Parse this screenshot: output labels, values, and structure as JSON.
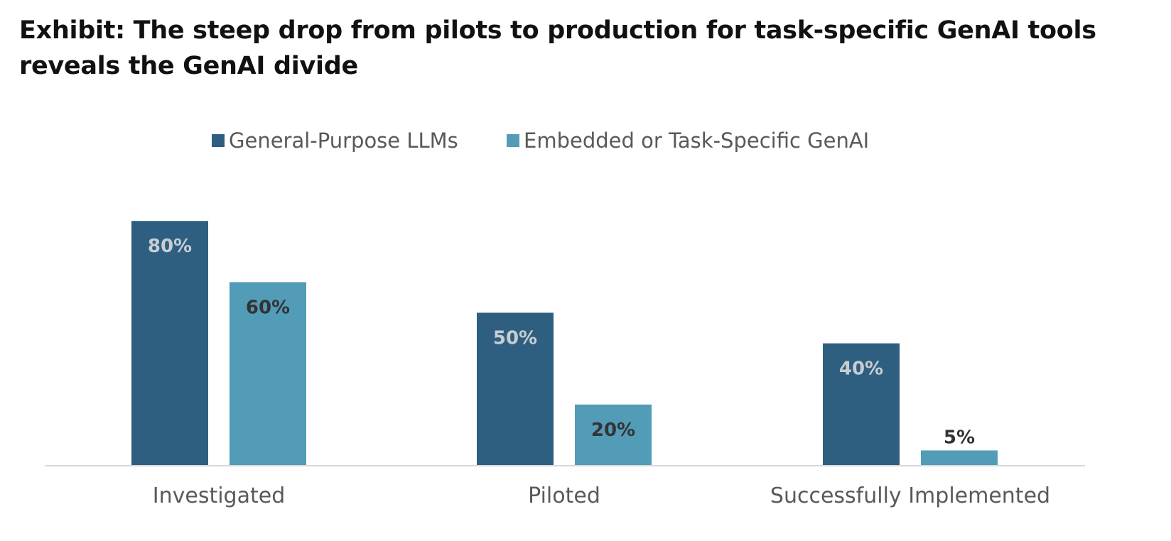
{
  "title": "Exhibit: The steep drop from pilots to production for task-specific GenAI tools reveals the GenAI divide",
  "chart_data": {
    "type": "bar",
    "categories": [
      "Investigated",
      "Piloted",
      "Successfully Implemented"
    ],
    "series": [
      {
        "name": "General-Purpose LLMs",
        "values": [
          80,
          50,
          40
        ],
        "labels": [
          "80%",
          "50%",
          "40%"
        ],
        "color": "#2E5F80",
        "label_color": "#C8CDD2"
      },
      {
        "name": "Embedded or Task-Specific GenAI",
        "values": [
          60,
          20,
          5
        ],
        "labels": [
          "60%",
          "20%",
          "5%"
        ],
        "color": "#529CB8",
        "label_color": "#333333"
      }
    ],
    "ylim": [
      0,
      100
    ],
    "legend": "top-center",
    "grid": false,
    "axis_color": "#D9D9D9"
  }
}
